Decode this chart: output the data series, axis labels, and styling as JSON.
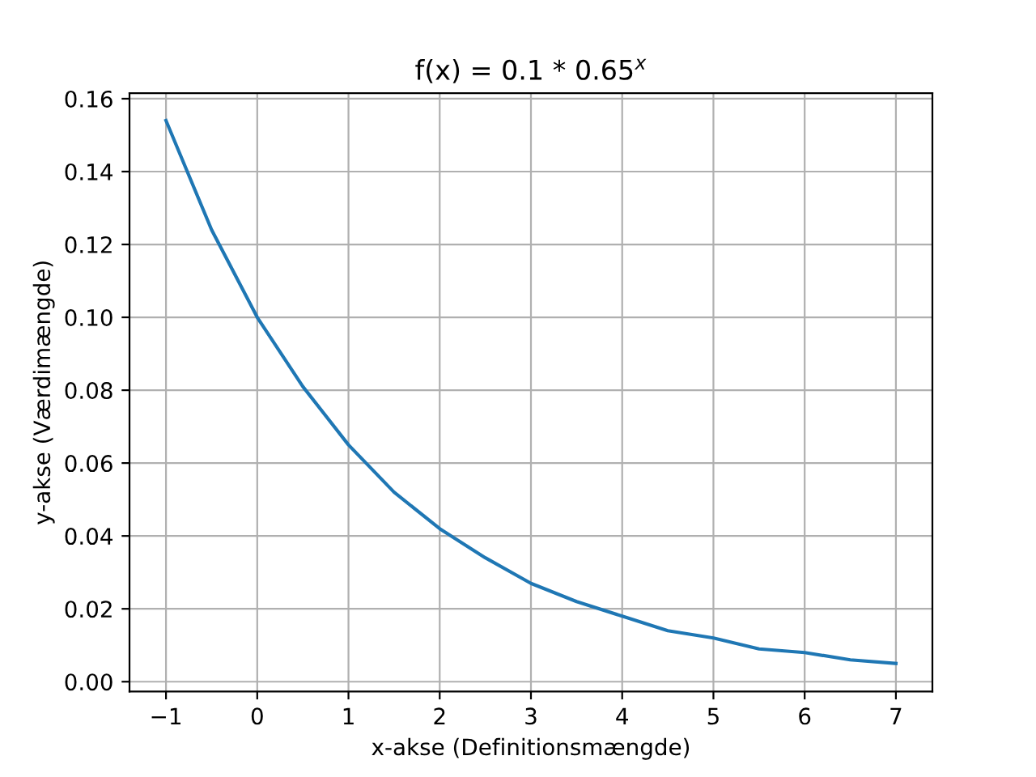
{
  "chart_data": {
    "type": "line",
    "title": "f(x) = 0.1 * 0.65$^{x}$",
    "xlabel": "x-akse (Definitionsmængde)",
    "ylabel": "y-akse (Værdimængde)",
    "x": [
      -1,
      -0.5,
      0,
      0.5,
      1,
      1.5,
      2,
      2.5,
      3,
      3.5,
      4,
      4.5,
      5,
      5.5,
      6,
      6.5,
      7
    ],
    "series": [
      {
        "color": "#1f77b4",
        "values": [
          0.154,
          0.124,
          0.1,
          0.081,
          0.065,
          0.052,
          0.042,
          0.034,
          0.027,
          0.022,
          0.018,
          0.014,
          0.012,
          0.009,
          0.008,
          0.006,
          0.005
        ]
      }
    ],
    "xlim": [
      -1.4,
      7.4
    ],
    "ylim": [
      -0.0027,
      0.1615
    ],
    "xticks": [
      {
        "value": -1,
        "label": "−1"
      },
      0,
      1,
      2,
      3,
      4,
      5,
      6,
      7
    ],
    "yticks": [
      {
        "value": 0,
        "label": "0.00"
      },
      {
        "value": 0.02,
        "label": "0.02"
      },
      {
        "value": 0.04,
        "label": "0.04"
      },
      {
        "value": 0.06,
        "label": "0.06"
      },
      {
        "value": 0.08,
        "label": "0.08"
      },
      {
        "value": 0.1,
        "label": "0.10"
      },
      {
        "value": 0.12,
        "label": "0.12"
      },
      {
        "value": 0.14,
        "label": "0.14"
      },
      {
        "value": 0.16,
        "label": "0.16"
      }
    ],
    "grid": true,
    "marker": "none",
    "line_style": "solid",
    "legend": false
  }
}
